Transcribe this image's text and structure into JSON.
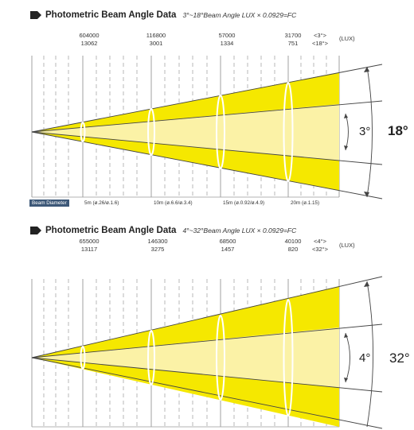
{
  "panels": [
    {
      "title": "Photometric Beam Angle Data",
      "subtitle": "3°~18°Beam Angle  LUX × 0.0929=FC",
      "lux_unit": "(LUX)",
      "columns": [
        {
          "top": "604000",
          "bottom": "13062"
        },
        {
          "top": "116800",
          "bottom": "3001"
        },
        {
          "top": "57000",
          "bottom": "1334"
        },
        {
          "top": "31700",
          "bottom": "751"
        }
      ],
      "angle_markers": {
        "top": "<3°>",
        "bottom": "<18°>"
      },
      "beam_diameter_label": "Beam Diameter",
      "distances": [
        "5m (ø.26/ø.1.6)",
        "10m (ø.6.6/ø.3.4)",
        "15m (ø.0.92/ø.4.9)",
        "20m (ø.1.15)"
      ],
      "inner_angle": "3°",
      "outer_angle": "18°",
      "outer_bold": true
    },
    {
      "title": "Photometric Beam Angle Data",
      "subtitle": "4°~32°Beam Angle  LUX × 0.0929=FC",
      "lux_unit": "(LUX)",
      "columns": [
        {
          "top": "655000",
          "bottom": "13117"
        },
        {
          "top": "146300",
          "bottom": "3275"
        },
        {
          "top": "68500",
          "bottom": "1457"
        },
        {
          "top": "40100",
          "bottom": "820"
        }
      ],
      "angle_markers": {
        "top": "<4°>",
        "bottom": "<32°>"
      },
      "beam_diameter_label": "",
      "distances": [
        "",
        "",
        "",
        ""
      ],
      "inner_angle": "4°",
      "outer_angle": "32°",
      "outer_bold": false
    }
  ],
  "colors": {
    "beam_outer": "#f5e800",
    "beam_inner": "#fbf2a6",
    "grid": "#8a8a8a",
    "line": "#444444"
  }
}
